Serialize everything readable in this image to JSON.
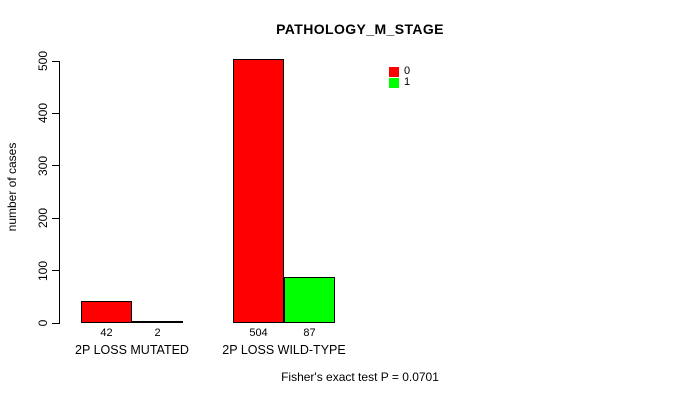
{
  "title": "PATHOLOGY_M_STAGE",
  "y_axis_label": "number of cases",
  "footer_annotation": "Fisher's exact test P = 0.0701",
  "legend": {
    "items": [
      {
        "label": "0",
        "color": "#FF0000"
      },
      {
        "label": "1",
        "color": "#00FF00"
      }
    ]
  },
  "chart_data": {
    "type": "bar",
    "title": "PATHOLOGY_M_STAGE",
    "xlabel": "",
    "ylabel": "number of cases",
    "categories": [
      "2P LOSS MUTATED",
      "2P LOSS WILD-TYPE"
    ],
    "series": [
      {
        "name": "0",
        "color": "#FF0000",
        "values": [
          42,
          504
        ]
      },
      {
        "name": "1",
        "color": "#00FF00",
        "values": [
          2,
          87
        ]
      }
    ],
    "bar_value_labels": [
      [
        "42",
        "2"
      ],
      [
        "504",
        "87"
      ]
    ],
    "y_ticks": [
      0,
      100,
      200,
      300,
      400,
      500
    ],
    "ylim": [
      0,
      500
    ],
    "grid": false,
    "legend_position": "top-right",
    "annotation": "Fisher's exact test P = 0.0701"
  }
}
